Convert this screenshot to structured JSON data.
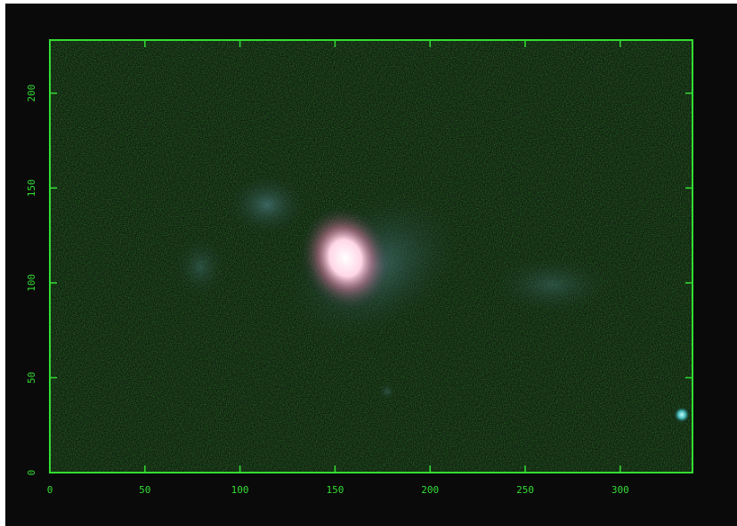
{
  "chart_data": {
    "type": "image",
    "xlim": [
      0,
      338
    ],
    "ylim": [
      0,
      228
    ],
    "xticks": [
      0,
      50,
      100,
      150,
      200,
      250,
      300
    ],
    "yticks": [
      0,
      50,
      100,
      150,
      200
    ],
    "color": "#33dd33"
  }
}
